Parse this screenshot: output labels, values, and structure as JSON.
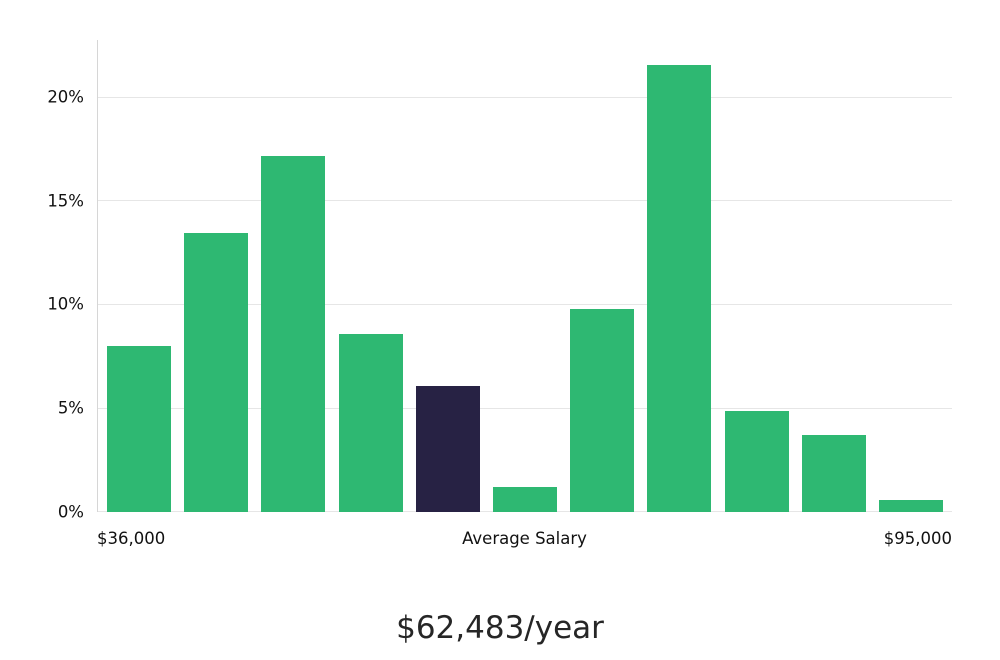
{
  "chart_data": {
    "type": "bar",
    "title": "",
    "xlabel": "",
    "ylabel": "",
    "values": [
      8.0,
      13.5,
      17.2,
      8.6,
      6.1,
      1.2,
      9.8,
      21.6,
      4.9,
      3.7,
      0.6
    ],
    "highlight_index": 4,
    "highlight_meaning": "average salary bin",
    "bar_color": "#2eb872",
    "highlight_color": "#272244",
    "ylim": [
      0,
      22.8
    ],
    "yticks": [
      0,
      5,
      10,
      15,
      20
    ],
    "ytick_labels": [
      "0%",
      "5%",
      "10%",
      "15%",
      "20%"
    ],
    "xlabel_left": "$36,000",
    "xlabel_center": "Average Salary",
    "xlabel_right": "$95,000",
    "grid": "horizontal",
    "legend_position": "none"
  },
  "footer": {
    "average_salary": "$62,483/year"
  },
  "colors": {
    "background": "#ffffff",
    "gridline": "#e6e6e6",
    "axis_line": "#d6d6d6",
    "text": "#111111"
  }
}
